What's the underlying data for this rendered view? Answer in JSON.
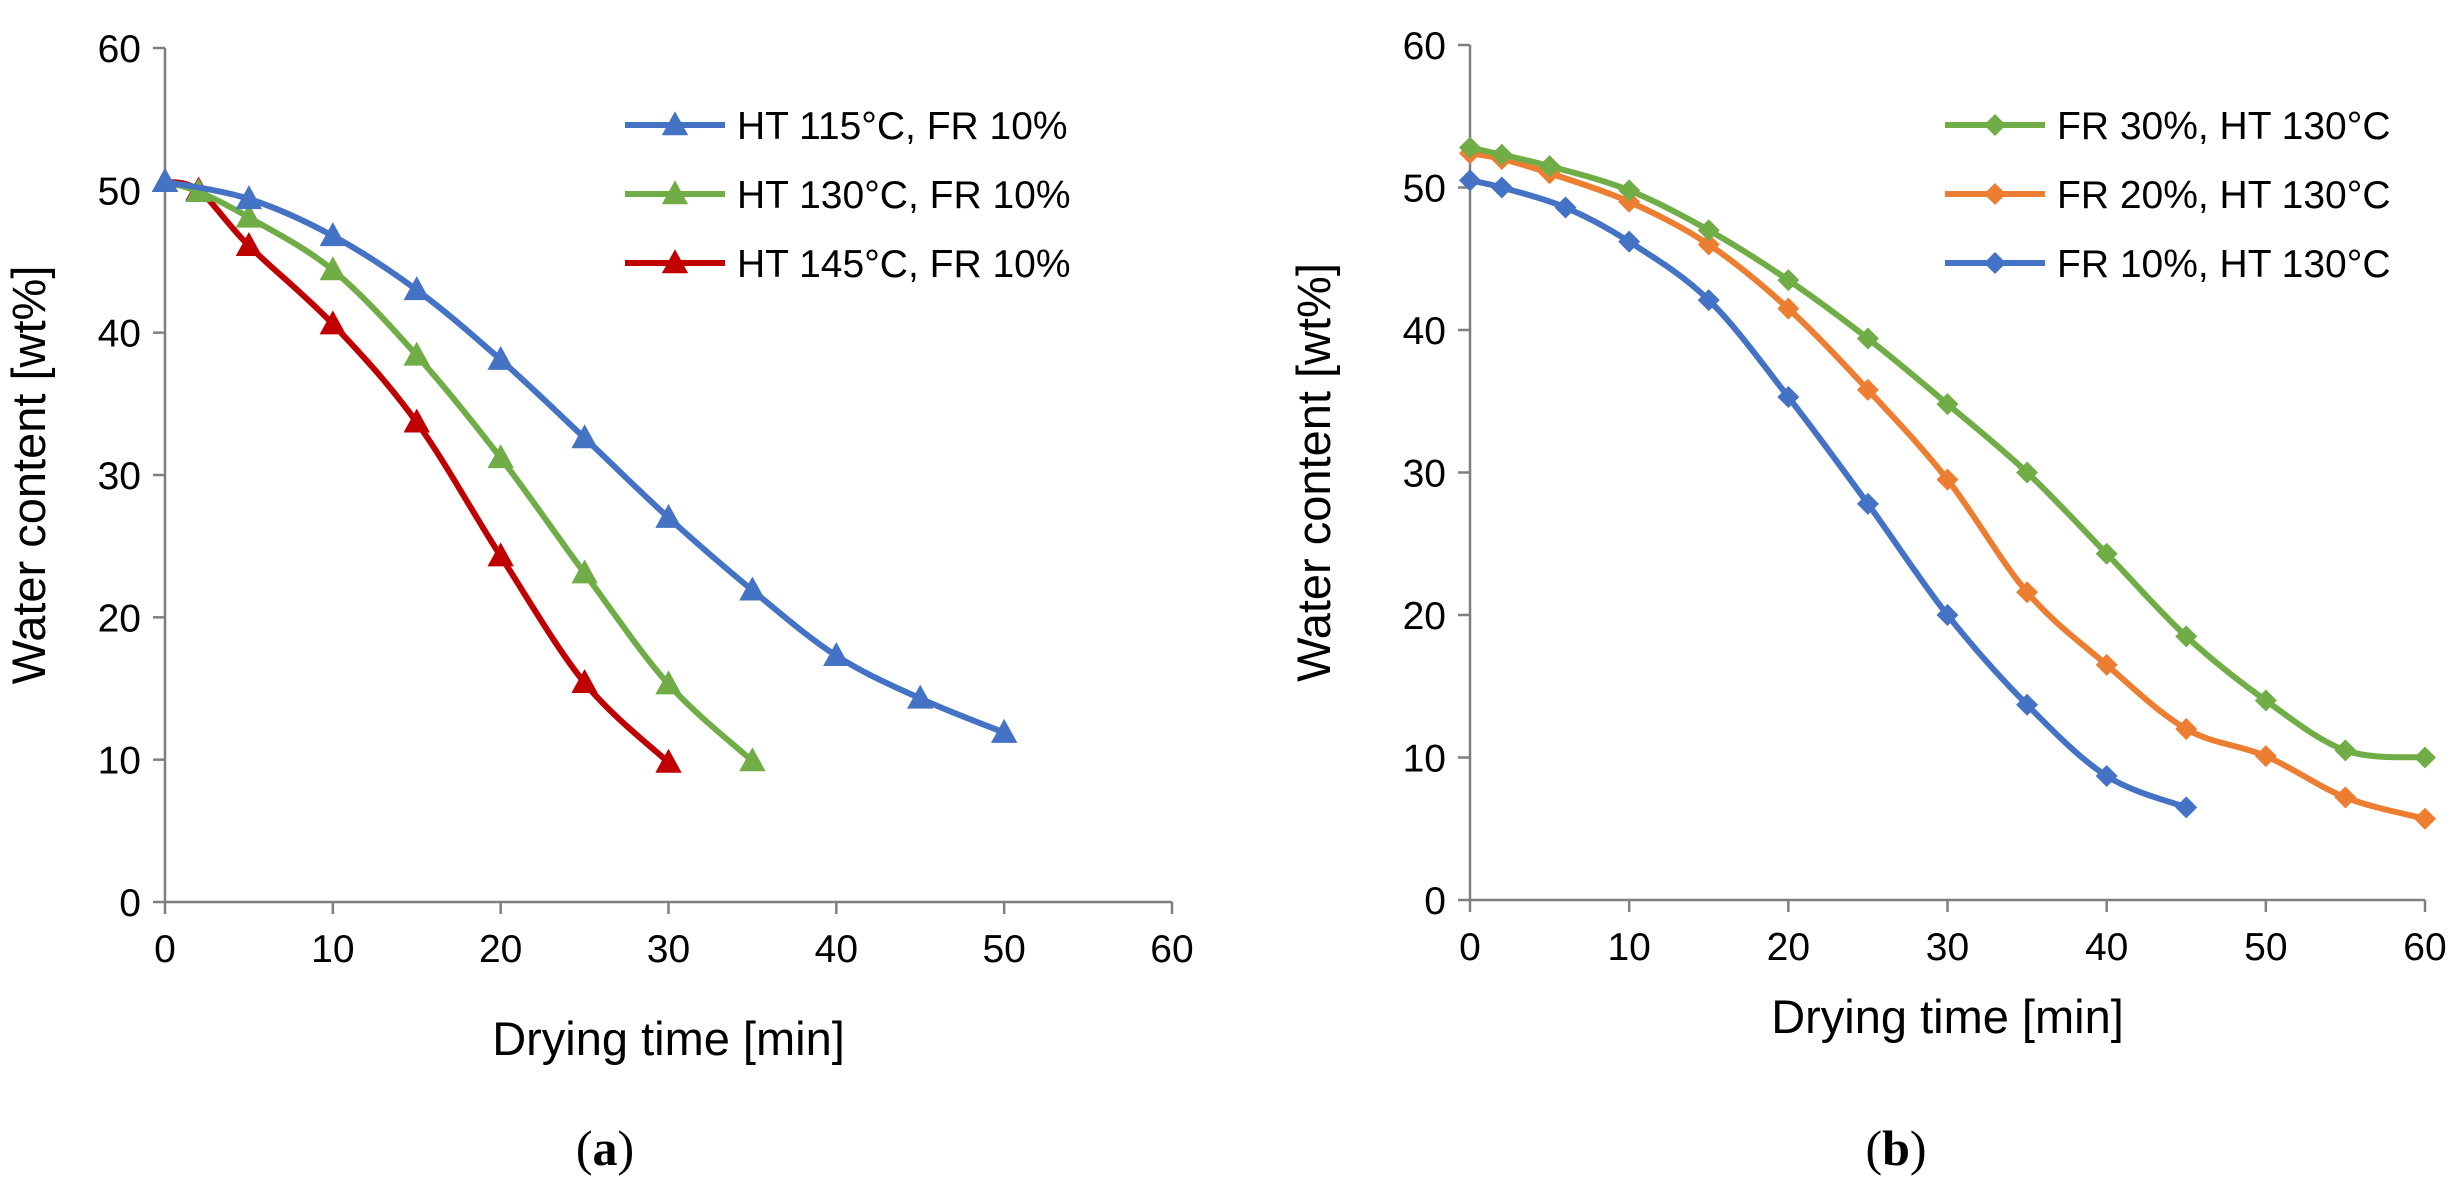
{
  "chart_data": [
    {
      "type": "line",
      "panel": "a",
      "caption": "(a)",
      "caption_letter": "a",
      "xlabel": "Drying time [min]",
      "ylabel": "Water content [wt%]",
      "xlim": [
        0,
        60
      ],
      "ylim": [
        0,
        60
      ],
      "xticks": [
        0,
        10,
        20,
        30,
        40,
        50,
        60
      ],
      "yticks": [
        0,
        10,
        20,
        30,
        40,
        50,
        60
      ],
      "marker": "triangle",
      "legend_position": "top-right",
      "series": [
        {
          "name": "HT 115°C, FR 10%",
          "color": "#4472C4",
          "x": [
            0,
            5,
            10,
            15,
            20,
            25,
            30,
            35,
            40,
            45,
            50
          ],
          "y": [
            50.6,
            49.4,
            46.8,
            43.0,
            38.1,
            32.6,
            27.0,
            21.9,
            17.3,
            14.3,
            11.9
          ]
        },
        {
          "name": "HT 130°C, FR 10%",
          "color": "#70AD47",
          "x": [
            0,
            2,
            5,
            10,
            15,
            20,
            25,
            30,
            35
          ],
          "y": [
            50.6,
            49.9,
            48.1,
            44.4,
            38.4,
            31.2,
            23.1,
            15.3,
            9.9
          ]
        },
        {
          "name": "HT 145°C, FR 10%",
          "color": "#C00000",
          "x": [
            0,
            2,
            5,
            10,
            15,
            20,
            25,
            30
          ],
          "y": [
            50.6,
            50.0,
            46.1,
            40.6,
            33.7,
            24.3,
            15.4,
            9.8
          ]
        }
      ]
    },
    {
      "type": "line",
      "panel": "b",
      "caption": "(b)",
      "caption_letter": "b",
      "xlabel": "Drying time [min]",
      "ylabel": "Water content [wt%]",
      "xlim": [
        0,
        60
      ],
      "ylim": [
        0,
        60
      ],
      "xticks": [
        0,
        10,
        20,
        30,
        40,
        50,
        60
      ],
      "yticks": [
        0,
        10,
        20,
        30,
        40,
        50,
        60
      ],
      "marker": "diamond",
      "legend_position": "top-right",
      "series": [
        {
          "name": "FR 30%, HT 130°C",
          "color": "#70AD47",
          "x": [
            0,
            2,
            5,
            10,
            15,
            20,
            25,
            30,
            35,
            40,
            45,
            50,
            55,
            60
          ],
          "y": [
            52.8,
            52.3,
            51.5,
            49.8,
            47.0,
            43.5,
            39.4,
            34.8,
            30.0,
            24.3,
            18.5,
            14.0,
            10.5,
            10.0
          ]
        },
        {
          "name": "FR 20%, HT 130°C",
          "color": "#ED7D31",
          "x": [
            0,
            2,
            5,
            10,
            15,
            20,
            25,
            30,
            35,
            40,
            45,
            50,
            55,
            60
          ],
          "y": [
            52.4,
            52.0,
            51.0,
            49.0,
            46.0,
            41.5,
            35.8,
            29.5,
            21.6,
            16.5,
            12.0,
            10.1,
            7.2,
            5.7
          ]
        },
        {
          "name": "FR 10%, HT 130°C",
          "color": "#4472C4",
          "x": [
            0,
            2,
            6,
            10,
            15,
            20,
            25,
            30,
            35,
            40,
            45
          ],
          "y": [
            50.5,
            50.0,
            48.6,
            46.2,
            42.1,
            35.3,
            27.8,
            20.0,
            13.7,
            8.7,
            6.5
          ]
        }
      ]
    }
  ]
}
